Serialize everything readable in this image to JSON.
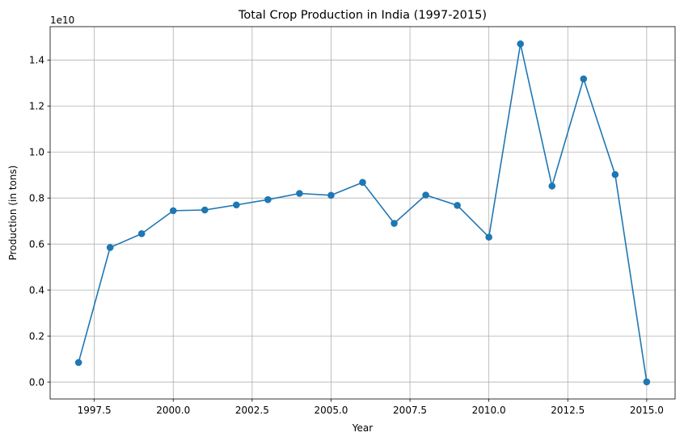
{
  "chart_data": {
    "type": "line",
    "title": "Total Crop Production in India (1997-2015)",
    "xlabel": "Year",
    "ylabel": "Production (in tons)",
    "y_offset_label": "1e10",
    "xlim": [
      1996.1,
      2015.9
    ],
    "ylim": [
      -0.0735,
      1.545
    ],
    "x_ticks": [
      1997.5,
      2000.0,
      2002.5,
      2005.0,
      2007.5,
      2010.0,
      2012.5,
      2015.0
    ],
    "x_tick_labels": [
      "1997.5",
      "2000.0",
      "2002.5",
      "2005.0",
      "2007.5",
      "2010.0",
      "2012.5",
      "2015.0"
    ],
    "y_ticks": [
      0.0,
      0.2,
      0.4,
      0.6,
      0.8,
      1.0,
      1.2,
      1.4
    ],
    "y_tick_labels": [
      "0.0",
      "0.2",
      "0.4",
      "0.6",
      "0.8",
      "1.0",
      "1.2",
      "1.4"
    ],
    "grid": true,
    "color": "#1f77b4",
    "marker": "circle",
    "series": [
      {
        "x": [
          1997,
          1998,
          1999,
          2000,
          2001,
          2002,
          2003,
          2004,
          2005,
          2006,
          2007,
          2008,
          2009,
          2010,
          2011,
          2012,
          2013,
          2014,
          2015
        ],
        "values": [
          0.085,
          0.585,
          0.645,
          0.745,
          0.748,
          0.77,
          0.793,
          0.82,
          0.812,
          0.868,
          0.69,
          0.813,
          0.768,
          0.63,
          1.47,
          0.852,
          1.318,
          0.902,
          0.001
        ]
      }
    ]
  }
}
